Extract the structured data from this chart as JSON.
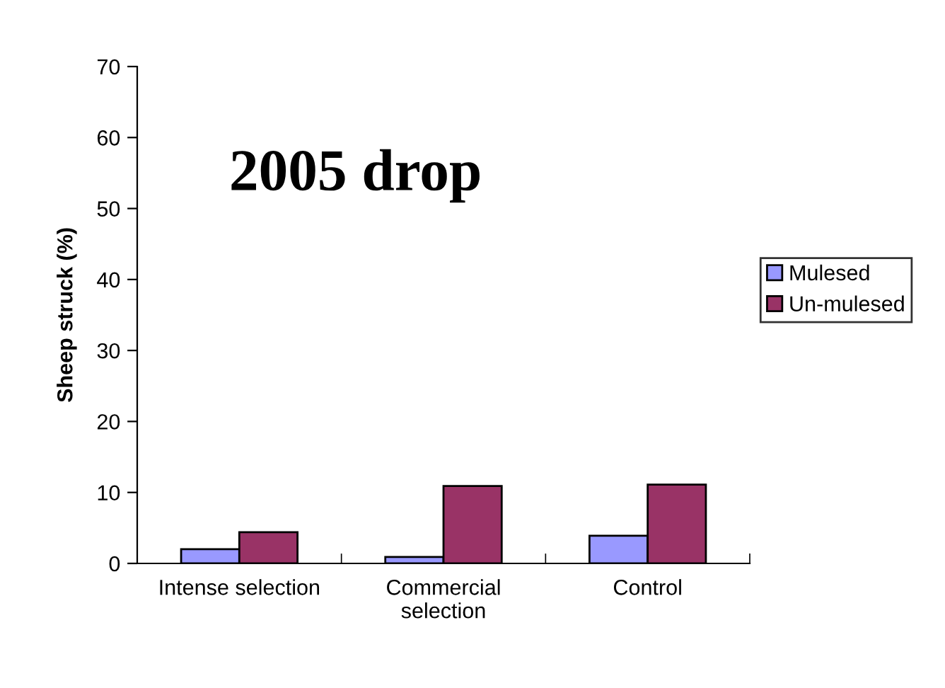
{
  "chart_data": {
    "type": "bar",
    "title": "2005 drop",
    "ylabel": "Sheep struck (%)",
    "categories": [
      "Intense selection",
      "Commercial\nselection",
      "Control"
    ],
    "series": [
      {
        "name": "Mulesed",
        "color": "#9999ff",
        "values": [
          2.0,
          0.9,
          3.9
        ]
      },
      {
        "name": "Un-mulesed",
        "color": "#993366",
        "values": [
          4.4,
          10.9,
          11.1
        ]
      }
    ],
    "ylim": [
      0,
      70
    ],
    "yticks": [
      0,
      10,
      20,
      30,
      40,
      50,
      60,
      70
    ],
    "grid": false,
    "legend": "right"
  }
}
